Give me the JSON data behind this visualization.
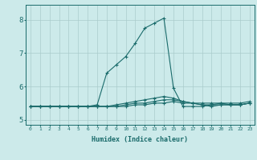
{
  "xlabel": "Humidex (Indice chaleur)",
  "ylabel": "",
  "x_values": [
    0,
    1,
    2,
    3,
    4,
    5,
    6,
    7,
    8,
    9,
    10,
    11,
    12,
    13,
    14,
    15,
    16,
    17,
    18,
    19,
    20,
    21,
    22,
    23
  ],
  "x_labels": [
    "0",
    "1",
    "2",
    "3",
    "4",
    "5",
    "6",
    "7",
    "8",
    "9",
    "10",
    "11",
    "12",
    "13",
    "14",
    "15",
    "16",
    "17",
    "18",
    "19",
    "20",
    "21",
    "22",
    "23"
  ],
  "series": [
    [
      5.4,
      5.4,
      5.4,
      5.4,
      5.4,
      5.4,
      5.4,
      5.45,
      6.4,
      6.65,
      6.9,
      7.3,
      7.75,
      7.9,
      8.05,
      5.95,
      5.4,
      5.4,
      5.4,
      5.45,
      5.5,
      5.45,
      5.45,
      5.5
    ],
    [
      5.4,
      5.4,
      5.4,
      5.4,
      5.4,
      5.4,
      5.4,
      5.4,
      5.4,
      5.45,
      5.5,
      5.55,
      5.6,
      5.65,
      5.7,
      5.65,
      5.55,
      5.5,
      5.45,
      5.4,
      5.45,
      5.45,
      5.45,
      5.5
    ],
    [
      5.4,
      5.4,
      5.4,
      5.4,
      5.4,
      5.4,
      5.4,
      5.4,
      5.4,
      5.4,
      5.45,
      5.5,
      5.5,
      5.55,
      5.6,
      5.6,
      5.55,
      5.5,
      5.45,
      5.45,
      5.45,
      5.45,
      5.45,
      5.5
    ],
    [
      5.4,
      5.4,
      5.4,
      5.4,
      5.4,
      5.4,
      5.4,
      5.4,
      5.4,
      5.4,
      5.4,
      5.45,
      5.45,
      5.5,
      5.5,
      5.55,
      5.5,
      5.5,
      5.5,
      5.5,
      5.5,
      5.5,
      5.5,
      5.55
    ]
  ],
  "line_color": "#1a6b6b",
  "marker": "+",
  "bg_color": "#cceaea",
  "grid_color": "#aacccc",
  "ylim": [
    4.85,
    8.45
  ],
  "yticks": [
    5,
    6,
    7,
    8
  ],
  "xlim": [
    -0.5,
    23.5
  ]
}
